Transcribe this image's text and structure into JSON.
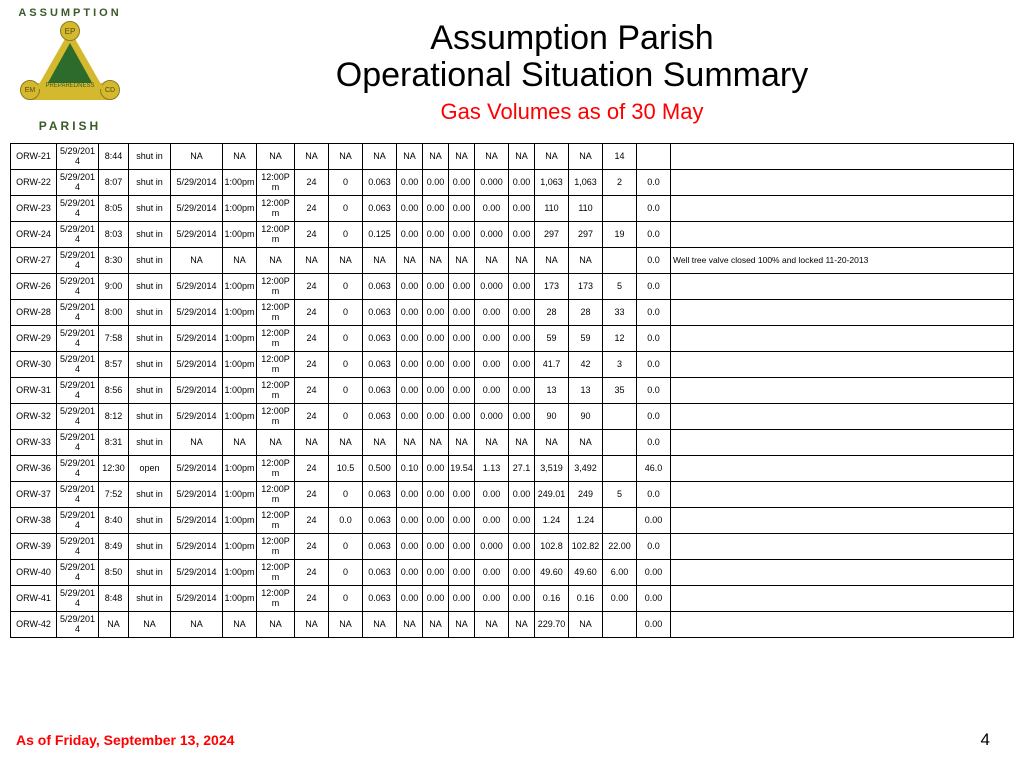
{
  "header": {
    "logo_top": "ASSUMPTION",
    "logo_bottom": "PARISH",
    "logo_ep": "EP",
    "logo_em": "EM",
    "logo_cd": "CD",
    "logo_prep": "PREPAREDNESS",
    "title1": "Assumption Parish",
    "title2": "Operational Situation Summary",
    "subtitle": "Gas Volumes as of 30 May"
  },
  "colors": {
    "title": "#000000",
    "subtitle": "#ff0000",
    "footer_date": "#ff0000",
    "border": "#000000",
    "logo_yellow": "#d4b82e",
    "logo_green": "#2d6b2d"
  },
  "table": {
    "rows": [
      {
        "id": "ORW-21",
        "date": "5/29/2014",
        "time": "8:44",
        "status": "shut in",
        "d2": "NA",
        "t1": "NA",
        "t2": "NA",
        "c1": "NA",
        "c2": "NA",
        "c3": "NA",
        "c4": "NA",
        "c5": "NA",
        "c6": "NA",
        "c7": "NA",
        "c8": "NA",
        "c9": "NA",
        "c10": "NA",
        "c11": "14",
        "c12": "",
        "notes": ""
      },
      {
        "id": "ORW-22",
        "date": "5/29/2014",
        "time": "8:07",
        "status": "shut in",
        "d2": "5/29/2014",
        "t1": "1:00pm",
        "t2": "12:00Pm",
        "c1": "24",
        "c2": "0",
        "c3": "0.063",
        "c4": "0.00",
        "c5": "0.00",
        "c6": "0.00",
        "c7": "0.000",
        "c8": "0.00",
        "c9": "1,063",
        "c10": "1,063",
        "c11": "2",
        "c12": "0.0",
        "notes": ""
      },
      {
        "id": "ORW-23",
        "date": "5/29/2014",
        "time": "8:05",
        "status": "shut in",
        "d2": "5/29/2014",
        "t1": "1:00pm",
        "t2": "12:00Pm",
        "c1": "24",
        "c2": "0",
        "c3": "0.063",
        "c4": "0.00",
        "c5": "0.00",
        "c6": "0.00",
        "c7": "0.00",
        "c8": "0.00",
        "c9": "110",
        "c10": "110",
        "c11": "",
        "c12": "0.0",
        "notes": ""
      },
      {
        "id": "ORW-24",
        "date": "5/29/2014",
        "time": "8:03",
        "status": "shut in",
        "d2": "5/29/2014",
        "t1": "1:00pm",
        "t2": "12:00Pm",
        "c1": "24",
        "c2": "0",
        "c3": "0.125",
        "c4": "0.00",
        "c5": "0.00",
        "c6": "0.00",
        "c7": "0.000",
        "c8": "0.00",
        "c9": "297",
        "c10": "297",
        "c11": "19",
        "c12": "0.0",
        "notes": ""
      },
      {
        "id": "ORW-27",
        "date": "5/29/2014",
        "time": "8:30",
        "status": "shut in",
        "d2": "NA",
        "t1": "NA",
        "t2": "NA",
        "c1": "NA",
        "c2": "NA",
        "c3": "NA",
        "c4": "NA",
        "c5": "NA",
        "c6": "NA",
        "c7": "NA",
        "c8": "NA",
        "c9": "NA",
        "c10": "NA",
        "c11": "",
        "c12": "0.0",
        "notes": "Well tree valve closed 100% and locked 11-20-2013"
      },
      {
        "id": "ORW-26",
        "date": "5/29/2014",
        "time": "9:00",
        "status": "shut in",
        "d2": "5/29/2014",
        "t1": "1:00pm",
        "t2": "12:00Pm",
        "c1": "24",
        "c2": "0",
        "c3": "0.063",
        "c4": "0.00",
        "c5": "0.00",
        "c6": "0.00",
        "c7": "0.000",
        "c8": "0.00",
        "c9": "173",
        "c10": "173",
        "c11": "5",
        "c12": "0.0",
        "notes": ""
      },
      {
        "id": "ORW-28",
        "date": "5/29/2014",
        "time": "8:00",
        "status": "shut in",
        "d2": "5/29/2014",
        "t1": "1:00pm",
        "t2": "12:00Pm",
        "c1": "24",
        "c2": "0",
        "c3": "0.063",
        "c4": "0.00",
        "c5": "0.00",
        "c6": "0.00",
        "c7": "0.00",
        "c8": "0.00",
        "c9": "28",
        "c10": "28",
        "c11": "33",
        "c12": "0.0",
        "notes": ""
      },
      {
        "id": "ORW-29",
        "date": "5/29/2014",
        "time": "7:58",
        "status": "shut in",
        "d2": "5/29/2014",
        "t1": "1:00pm",
        "t2": "12:00Pm",
        "c1": "24",
        "c2": "0",
        "c3": "0.063",
        "c4": "0.00",
        "c5": "0.00",
        "c6": "0.00",
        "c7": "0.00",
        "c8": "0.00",
        "c9": "59",
        "c10": "59",
        "c11": "12",
        "c12": "0.0",
        "notes": ""
      },
      {
        "id": "ORW-30",
        "date": "5/29/2014",
        "time": "8:57",
        "status": "shut in",
        "d2": "5/29/2014",
        "t1": "1:00pm",
        "t2": "12:00Pm",
        "c1": "24",
        "c2": "0",
        "c3": "0.063",
        "c4": "0.00",
        "c5": "0.00",
        "c6": "0.00",
        "c7": "0.00",
        "c8": "0.00",
        "c9": "41.7",
        "c10": "42",
        "c11": "3",
        "c12": "0.0",
        "notes": ""
      },
      {
        "id": "ORW-31",
        "date": "5/29/2014",
        "time": "8:56",
        "status": "shut in",
        "d2": "5/29/2014",
        "t1": "1:00pm",
        "t2": "12:00Pm",
        "c1": "24",
        "c2": "0",
        "c3": "0.063",
        "c4": "0.00",
        "c5": "0.00",
        "c6": "0.00",
        "c7": "0.00",
        "c8": "0.00",
        "c9": "13",
        "c10": "13",
        "c11": "35",
        "c12": "0.0",
        "notes": ""
      },
      {
        "id": "ORW-32",
        "date": "5/29/2014",
        "time": "8:12",
        "status": "shut in",
        "d2": "5/29/2014",
        "t1": "1:00pm",
        "t2": "12:00Pm",
        "c1": "24",
        "c2": "0",
        "c3": "0.063",
        "c4": "0.00",
        "c5": "0.00",
        "c6": "0.00",
        "c7": "0.000",
        "c8": "0.00",
        "c9": "90",
        "c10": "90",
        "c11": "",
        "c12": "0.0",
        "notes": ""
      },
      {
        "id": "ORW-33",
        "date": "5/29/2014",
        "time": "8:31",
        "status": "shut in",
        "d2": "NA",
        "t1": "NA",
        "t2": "NA",
        "c1": "NA",
        "c2": "NA",
        "c3": "NA",
        "c4": "NA",
        "c5": "NA",
        "c6": "NA",
        "c7": "NA",
        "c8": "NA",
        "c9": "NA",
        "c10": "NA",
        "c11": "",
        "c12": "0.0",
        "notes": ""
      },
      {
        "id": "ORW-36",
        "date": "5/29/2014",
        "time": "12:30",
        "status": "open",
        "d2": "5/29/2014",
        "t1": "1:00pm",
        "t2": "12:00Pm",
        "c1": "24",
        "c2": "10.5",
        "c3": "0.500",
        "c4": "0.10",
        "c5": "0.00",
        "c6": "19.54",
        "c7": "1.13",
        "c8": "27.1",
        "c9": "3,519",
        "c10": "3,492",
        "c11": "",
        "c12": "46.0",
        "notes": ""
      },
      {
        "id": "ORW-37",
        "date": "5/29/2014",
        "time": "7:52",
        "status": "shut in",
        "d2": "5/29/2014",
        "t1": "1:00pm",
        "t2": "12:00Pm",
        "c1": "24",
        "c2": "0",
        "c3": "0.063",
        "c4": "0.00",
        "c5": "0.00",
        "c6": "0.00",
        "c7": "0.00",
        "c8": "0.00",
        "c9": "249.01",
        "c10": "249",
        "c11": "5",
        "c12": "0.0",
        "notes": ""
      },
      {
        "id": "ORW-38",
        "date": "5/29/2014",
        "time": "8:40",
        "status": "shut in",
        "d2": "5/29/2014",
        "t1": "1:00pm",
        "t2": "12:00Pm",
        "c1": "24",
        "c2": "0.0",
        "c3": "0.063",
        "c4": "0.00",
        "c5": "0.00",
        "c6": "0.00",
        "c7": "0.00",
        "c8": "0.00",
        "c9": "1.24",
        "c10": "1.24",
        "c11": "",
        "c12": "0.00",
        "notes": ""
      },
      {
        "id": "ORW-39",
        "date": "5/29/2014",
        "time": "8:49",
        "status": "shut in",
        "d2": "5/29/2014",
        "t1": "1:00pm",
        "t2": "12:00Pm",
        "c1": "24",
        "c2": "0",
        "c3": "0.063",
        "c4": "0.00",
        "c5": "0.00",
        "c6": "0.00",
        "c7": "0.000",
        "c8": "0.00",
        "c9": "102.8",
        "c10": "102.82",
        "c11": "22.00",
        "c12": "0.0",
        "notes": ""
      },
      {
        "id": "ORW-40",
        "date": "5/29/2014",
        "time": "8:50",
        "status": "shut in",
        "d2": "5/29/2014",
        "t1": "1:00pm",
        "t2": "12:00Pm",
        "c1": "24",
        "c2": "0",
        "c3": "0.063",
        "c4": "0.00",
        "c5": "0.00",
        "c6": "0.00",
        "c7": "0.00",
        "c8": "0.00",
        "c9": "49.60",
        "c10": "49.60",
        "c11": "6.00",
        "c12": "0.00",
        "notes": ""
      },
      {
        "id": "ORW-41",
        "date": "5/29/2014",
        "time": "8:48",
        "status": "shut in",
        "d2": "5/29/2014",
        "t1": "1:00pm",
        "t2": "12:00Pm",
        "c1": "24",
        "c2": "0",
        "c3": "0.063",
        "c4": "0.00",
        "c5": "0.00",
        "c6": "0.00",
        "c7": "0.00",
        "c8": "0.00",
        "c9": "0.16",
        "c10": "0.16",
        "c11": "0.00",
        "c12": "0.00",
        "notes": ""
      },
      {
        "id": "ORW-42",
        "date": "5/29/2014",
        "time": "NA",
        "status": "NA",
        "d2": "NA",
        "t1": "NA",
        "t2": "NA",
        "c1": "NA",
        "c2": "NA",
        "c3": "NA",
        "c4": "NA",
        "c5": "NA",
        "c6": "NA",
        "c7": "NA",
        "c8": "NA",
        "c9": "229.70",
        "c10": "NA",
        "c11": "",
        "c12": "0.00",
        "notes": ""
      }
    ]
  },
  "footer": {
    "date": "As of Friday, September 13, 2024",
    "page": "4"
  }
}
